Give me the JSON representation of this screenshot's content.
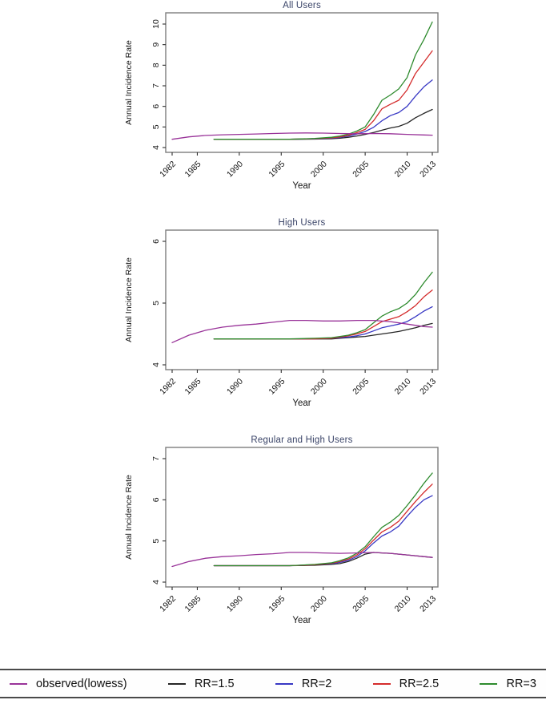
{
  "legend": {
    "items": [
      {
        "label": "observed(lowess)",
        "color": "#993399"
      },
      {
        "label": "RR=1.5",
        "color": "#262626"
      },
      {
        "label": "RR=2",
        "color": "#3838c4"
      },
      {
        "label": "RR=2.5",
        "color": "#d42c2c"
      },
      {
        "label": "RR=3",
        "color": "#2e8b2e"
      }
    ]
  },
  "chart_data": [
    {
      "type": "line",
      "title": "All Users",
      "xlabel": "Year",
      "ylabel": "Annual Incidence Rate",
      "xlim": [
        1982,
        2013
      ],
      "ylim": [
        4,
        10
      ],
      "xticks": [
        1982,
        1985,
        1990,
        1995,
        2000,
        2005,
        2010,
        2013
      ],
      "yticks": [
        4,
        5,
        6,
        7,
        8,
        9,
        10
      ],
      "grid": false,
      "legend_position": "bottom-strip",
      "series": [
        {
          "name": "RR=1.5",
          "color": "#262626",
          "x": [
            1987,
            1990,
            1993,
            1996,
            1999,
            2001,
            2002,
            2003,
            2004,
            2005,
            2006,
            2007,
            2008,
            2009,
            2010,
            2011,
            2012,
            2013
          ],
          "y": [
            4.4,
            4.4,
            4.4,
            4.4,
            4.41,
            4.43,
            4.45,
            4.5,
            4.56,
            4.64,
            4.73,
            4.84,
            4.95,
            5.03,
            5.18,
            5.45,
            5.66,
            5.85
          ]
        },
        {
          "name": "RR=2",
          "color": "#3838c4",
          "x": [
            1987,
            1990,
            1993,
            1996,
            1999,
            2001,
            2002,
            2003,
            2004,
            2005,
            2006,
            2007,
            2008,
            2009,
            2010,
            2011,
            2012,
            2013
          ],
          "y": [
            4.4,
            4.4,
            4.4,
            4.4,
            4.42,
            4.45,
            4.49,
            4.56,
            4.65,
            4.78,
            4.98,
            5.3,
            5.55,
            5.7,
            6.0,
            6.5,
            6.95,
            7.28
          ]
        },
        {
          "name": "RR=2.5",
          "color": "#d42c2c",
          "x": [
            1987,
            1990,
            1993,
            1996,
            1999,
            2001,
            2002,
            2003,
            2004,
            2005,
            2006,
            2007,
            2008,
            2009,
            2010,
            2011,
            2012,
            2013
          ],
          "y": [
            4.4,
            4.4,
            4.4,
            4.4,
            4.43,
            4.47,
            4.52,
            4.6,
            4.72,
            4.88,
            5.3,
            5.88,
            6.1,
            6.3,
            6.8,
            7.6,
            8.15,
            8.7
          ]
        },
        {
          "name": "RR=3",
          "color": "#2e8b2e",
          "x": [
            1987,
            1990,
            1993,
            1996,
            1999,
            2001,
            2002,
            2003,
            2004,
            2005,
            2006,
            2007,
            2008,
            2009,
            2010,
            2011,
            2012,
            2013
          ],
          "y": [
            4.4,
            4.4,
            4.4,
            4.4,
            4.44,
            4.5,
            4.56,
            4.65,
            4.8,
            5.0,
            5.6,
            6.3,
            6.55,
            6.85,
            7.4,
            8.5,
            9.25,
            10.1
          ]
        },
        {
          "name": "observed(lowess)",
          "color": "#993399",
          "x": [
            1982,
            1984,
            1986,
            1988,
            1990,
            1992,
            1994,
            1996,
            1998,
            2000,
            2002,
            2004,
            2006,
            2008,
            2010,
            2012,
            2013
          ],
          "y": [
            4.4,
            4.52,
            4.59,
            4.62,
            4.64,
            4.66,
            4.68,
            4.7,
            4.71,
            4.7,
            4.68,
            4.67,
            4.68,
            4.67,
            4.64,
            4.61,
            4.6
          ]
        }
      ]
    },
    {
      "type": "line",
      "title": "High Users",
      "xlabel": "Year",
      "ylabel": "Annual Incidence Rate",
      "xlim": [
        1982,
        2013
      ],
      "ylim": [
        4,
        6
      ],
      "xticks": [
        1982,
        1985,
        1990,
        1995,
        2000,
        2005,
        2010,
        2013
      ],
      "yticks": [
        4,
        5,
        6
      ],
      "grid": false,
      "legend_position": "bottom-strip",
      "series": [
        {
          "name": "RR=1.5",
          "color": "#262626",
          "x": [
            1987,
            1990,
            1993,
            1996,
            1999,
            2001,
            2002,
            2003,
            2004,
            2005,
            2006,
            2007,
            2008,
            2009,
            2010,
            2011,
            2012,
            2013
          ],
          "y": [
            4.42,
            4.42,
            4.42,
            4.42,
            4.42,
            4.42,
            4.43,
            4.44,
            4.45,
            4.46,
            4.48,
            4.5,
            4.52,
            4.54,
            4.57,
            4.6,
            4.64,
            4.67
          ]
        },
        {
          "name": "RR=2",
          "color": "#3838c4",
          "x": [
            1987,
            1990,
            1993,
            1996,
            1999,
            2001,
            2002,
            2003,
            2004,
            2005,
            2006,
            2007,
            2008,
            2009,
            2010,
            2011,
            2012,
            2013
          ],
          "y": [
            4.42,
            4.42,
            4.42,
            4.42,
            4.42,
            4.43,
            4.44,
            4.45,
            4.47,
            4.5,
            4.55,
            4.6,
            4.63,
            4.66,
            4.7,
            4.78,
            4.87,
            4.94
          ]
        },
        {
          "name": "RR=2.5",
          "color": "#d42c2c",
          "x": [
            1987,
            1990,
            1993,
            1996,
            1999,
            2001,
            2002,
            2003,
            2004,
            2005,
            2006,
            2007,
            2008,
            2009,
            2010,
            2011,
            2012,
            2013
          ],
          "y": [
            4.42,
            4.42,
            4.42,
            4.42,
            4.42,
            4.43,
            4.45,
            4.47,
            4.5,
            4.54,
            4.62,
            4.7,
            4.74,
            4.78,
            4.86,
            4.96,
            5.1,
            5.21
          ]
        },
        {
          "name": "RR=3",
          "color": "#2e8b2e",
          "x": [
            1987,
            1990,
            1993,
            1996,
            1999,
            2001,
            2002,
            2003,
            2004,
            2005,
            2006,
            2007,
            2008,
            2009,
            2010,
            2011,
            2012,
            2013
          ],
          "y": [
            4.42,
            4.42,
            4.42,
            4.42,
            4.43,
            4.44,
            4.46,
            4.48,
            4.52,
            4.57,
            4.68,
            4.79,
            4.86,
            4.91,
            5.0,
            5.14,
            5.33,
            5.5
          ]
        },
        {
          "name": "observed(lowess)",
          "color": "#993399",
          "x": [
            1982,
            1984,
            1986,
            1988,
            1990,
            1992,
            1994,
            1996,
            1998,
            2000,
            2002,
            2004,
            2006,
            2008,
            2010,
            2012,
            2013
          ],
          "y": [
            4.36,
            4.48,
            4.56,
            4.61,
            4.64,
            4.66,
            4.69,
            4.72,
            4.72,
            4.71,
            4.71,
            4.72,
            4.72,
            4.7,
            4.66,
            4.62,
            4.61
          ]
        }
      ]
    },
    {
      "type": "line",
      "title": "Regular and High Users",
      "xlabel": "Year",
      "ylabel": "Annual Incidence Rate",
      "xlim": [
        1982,
        2013
      ],
      "ylim": [
        4,
        7
      ],
      "xticks": [
        1982,
        1985,
        1990,
        1995,
        2000,
        2005,
        2010,
        2013
      ],
      "yticks": [
        4,
        5,
        6,
        7
      ],
      "grid": false,
      "legend_position": "bottom-strip",
      "series": [
        {
          "name": "RR=1.5",
          "color": "#262626",
          "x": [
            1987,
            1990,
            1993,
            1996,
            1999,
            2001,
            2002,
            2003,
            2004,
            2005,
            2006,
            2007,
            2008,
            2009,
            2010,
            2011,
            2012,
            2013
          ],
          "y": [
            4.4,
            4.4,
            4.4,
            4.4,
            4.41,
            4.43,
            4.45,
            4.5,
            4.58,
            4.68,
            4.72,
            4.71,
            4.7,
            4.68,
            4.66,
            4.64,
            4.62,
            4.6
          ]
        },
        {
          "name": "RR=2",
          "color": "#3838c4",
          "x": [
            1987,
            1990,
            1993,
            1996,
            1999,
            2001,
            2002,
            2003,
            2004,
            2005,
            2006,
            2007,
            2008,
            2009,
            2010,
            2011,
            2012,
            2013
          ],
          "y": [
            4.4,
            4.4,
            4.4,
            4.4,
            4.42,
            4.45,
            4.48,
            4.53,
            4.62,
            4.76,
            4.95,
            5.12,
            5.22,
            5.36,
            5.6,
            5.82,
            6.0,
            6.1
          ]
        },
        {
          "name": "RR=2.5",
          "color": "#d42c2c",
          "x": [
            1987,
            1990,
            1993,
            1996,
            1999,
            2001,
            2002,
            2003,
            2004,
            2005,
            2006,
            2007,
            2008,
            2009,
            2010,
            2011,
            2012,
            2013
          ],
          "y": [
            4.4,
            4.4,
            4.4,
            4.4,
            4.42,
            4.46,
            4.5,
            4.56,
            4.66,
            4.81,
            5.02,
            5.22,
            5.33,
            5.48,
            5.72,
            5.96,
            6.18,
            6.38
          ]
        },
        {
          "name": "RR=3",
          "color": "#2e8b2e",
          "x": [
            1987,
            1990,
            1993,
            1996,
            1999,
            2001,
            2002,
            2003,
            2004,
            2005,
            2006,
            2007,
            2008,
            2009,
            2010,
            2011,
            2012,
            2013
          ],
          "y": [
            4.4,
            4.4,
            4.4,
            4.4,
            4.43,
            4.47,
            4.52,
            4.59,
            4.7,
            4.86,
            5.1,
            5.33,
            5.46,
            5.62,
            5.86,
            6.12,
            6.4,
            6.65
          ]
        },
        {
          "name": "observed(lowess)",
          "color": "#993399",
          "x": [
            1982,
            1984,
            1986,
            1988,
            1990,
            1992,
            1994,
            1996,
            1998,
            2000,
            2002,
            2004,
            2006,
            2008,
            2010,
            2012,
            2013
          ],
          "y": [
            4.38,
            4.5,
            4.58,
            4.62,
            4.64,
            4.67,
            4.69,
            4.72,
            4.72,
            4.71,
            4.7,
            4.71,
            4.72,
            4.7,
            4.66,
            4.62,
            4.6
          ]
        }
      ]
    }
  ]
}
